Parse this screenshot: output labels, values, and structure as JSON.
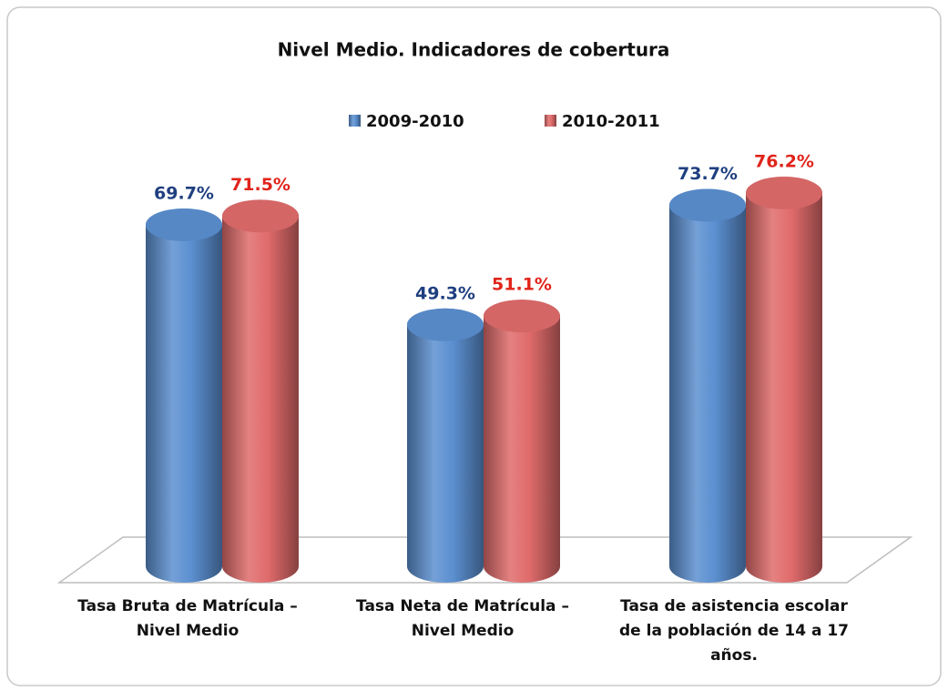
{
  "chart_data": {
    "type": "bar",
    "title": "Nivel Medio. Indicadores de cobertura",
    "categories": [
      "Tasa Bruta de Matrícula – Nivel Medio",
      "Tasa Neta de Matrícula – Nivel Medio",
      "Tasa de asistencia escolar de la población de 14 a 17 años."
    ],
    "series": [
      {
        "name": "2009-2010",
        "color": "#5b8fd0",
        "label_color": "#1f3f80",
        "values": [
          69.7,
          49.3,
          73.7
        ],
        "value_labels": [
          "69.7%",
          "49.3%",
          "73.7%"
        ]
      },
      {
        "name": "2010-2011",
        "color": "#e06b6b",
        "label_color": "#e0241b",
        "values": [
          71.5,
          51.1,
          76.2
        ],
        "value_labels": [
          "71.5%",
          "51.1%",
          "76.2%"
        ]
      }
    ],
    "legend": "top"
  }
}
